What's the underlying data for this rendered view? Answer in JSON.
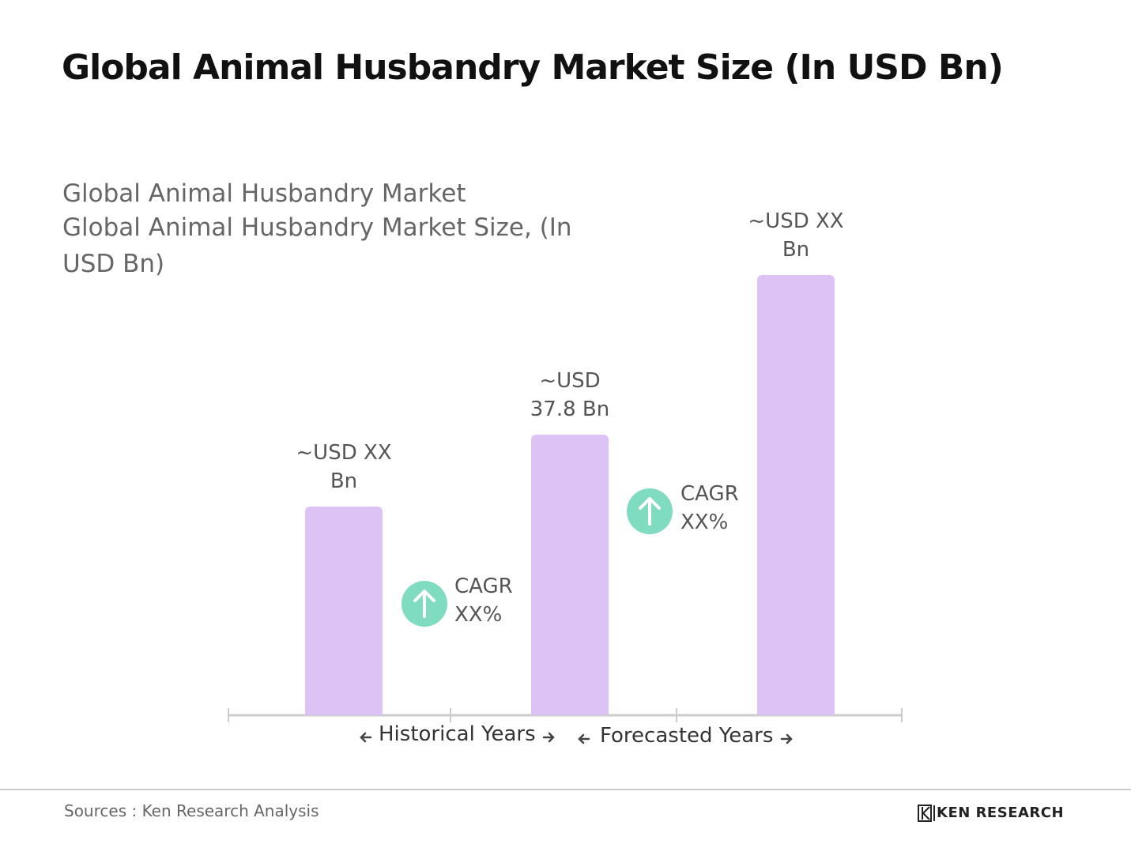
{
  "chart_data": {
    "type": "bar",
    "title": "Global Animal Husbandry Market Size (In USD Bn)",
    "subtitle": [
      "Global Animal Husbandry Market",
      "Global Animal Husbandry Market Size, (In USD Bn)"
    ],
    "categories": [
      null,
      null,
      null
    ],
    "values": [
      28.1,
      37.8,
      59.3
    ],
    "value_labels": [
      "~USD XX Bn",
      "~USD 37.8 Bn",
      "~USD XX Bn"
    ],
    "color": "#dcc2f5",
    "annotations": [
      "CAGR XX%",
      "CAGR XX%"
    ],
    "periods": [
      "Historical Years",
      "Forecasted Years"
    ],
    "source": "Sources : Ken Research Analysis",
    "brand": "KEN RESEARCH"
  }
}
